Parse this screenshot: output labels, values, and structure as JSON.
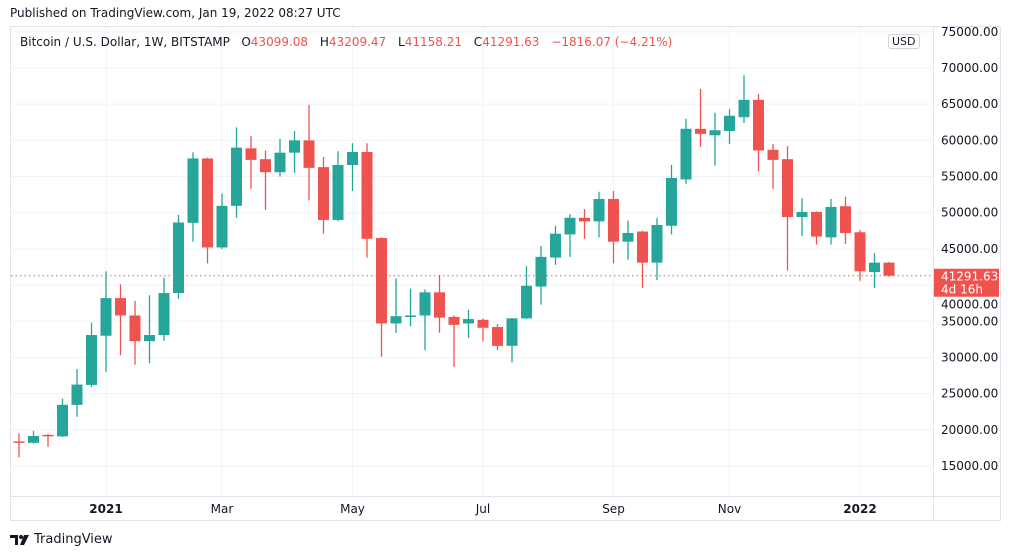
{
  "published": "Published on TradingView.com, Jan 19, 2022 08:27 UTC",
  "legend": {
    "symbol": "Bitcoin / U.S. Dollar, 1W, BITSTAMP",
    "o_label": "O",
    "o": "43099.08",
    "h_label": "H",
    "h": "43209.47",
    "l_label": "L",
    "l": "41158.21",
    "c_label": "C",
    "c": "41291.63",
    "change": "−1816.07 (−4.21%)"
  },
  "currency": "USD",
  "footer": {
    "brand": "TradingView",
    "logo_icon": "tradingview-logo-icon"
  },
  "colors": {
    "up": "#26a69a",
    "down": "#ef5350",
    "grid": "#f0f3fa"
  },
  "chart_data": {
    "type": "candlestick",
    "interval": "1W",
    "ylim": [
      12000,
      75500
    ],
    "grid": true,
    "y_ticks": [
      "75000.00",
      "70000.00",
      "65000.00",
      "60000.00",
      "55000.00",
      "50000.00",
      "45000.00",
      "40000.00",
      "35000.00",
      "30000.00",
      "25000.00",
      "20000.00",
      "15000.00"
    ],
    "x_ticks": [
      {
        "label": "2021",
        "bold": true,
        "index": 6
      },
      {
        "label": "Mar",
        "bold": false,
        "index": 14
      },
      {
        "label": "May",
        "bold": false,
        "index": 23
      },
      {
        "label": "Jul",
        "bold": false,
        "index": 32
      },
      {
        "label": "Sep",
        "bold": false,
        "index": 41
      },
      {
        "label": "Nov",
        "bold": false,
        "index": 49
      },
      {
        "label": "2022",
        "bold": true,
        "index": 58
      }
    ],
    "last_price": {
      "value": 41291.63,
      "label": "41291.63",
      "countdown": "4d 16h"
    },
    "x": [
      "2020-11-23",
      "2020-11-30",
      "2020-12-07",
      "2020-12-14",
      "2020-12-21",
      "2020-12-28",
      "2021-01-04",
      "2021-01-11",
      "2021-01-18",
      "2021-01-25",
      "2021-02-01",
      "2021-02-08",
      "2021-02-15",
      "2021-02-22",
      "2021-03-01",
      "2021-03-08",
      "2021-03-15",
      "2021-03-22",
      "2021-03-29",
      "2021-04-05",
      "2021-04-12",
      "2021-04-19",
      "2021-04-26",
      "2021-05-03",
      "2021-05-10",
      "2021-05-17",
      "2021-05-24",
      "2021-05-31",
      "2021-06-07",
      "2021-06-14",
      "2021-06-21",
      "2021-06-28",
      "2021-07-05",
      "2021-07-12",
      "2021-07-19",
      "2021-07-26",
      "2021-08-02",
      "2021-08-09",
      "2021-08-16",
      "2021-08-23",
      "2021-08-30",
      "2021-09-06",
      "2021-09-13",
      "2021-09-20",
      "2021-09-27",
      "2021-10-04",
      "2021-10-11",
      "2021-10-18",
      "2021-10-25",
      "2021-11-01",
      "2021-11-08",
      "2021-11-15",
      "2021-11-22",
      "2021-11-29",
      "2021-12-06",
      "2021-12-13",
      "2021-12-20",
      "2021-12-27",
      "2022-01-03",
      "2022-01-10",
      "2022-01-17"
    ],
    "ohlc": [
      [
        18400,
        19500,
        16200,
        18200
      ],
      [
        18200,
        19850,
        18100,
        19150
      ],
      [
        19300,
        19450,
        17650,
        19100
      ],
      [
        19100,
        24300,
        19000,
        23450
      ],
      [
        23450,
        28400,
        21800,
        26250
      ],
      [
        26200,
        34800,
        25900,
        33100
      ],
      [
        33000,
        41900,
        28000,
        38200
      ],
      [
        38200,
        40100,
        30300,
        35800
      ],
      [
        35800,
        37800,
        29000,
        32250
      ],
      [
        32250,
        38600,
        29200,
        33100
      ],
      [
        33100,
        41000,
        32300,
        38900
      ],
      [
        38900,
        49700,
        38100,
        48650
      ],
      [
        48600,
        58350,
        46000,
        57500
      ],
      [
        57500,
        57600,
        43000,
        45200
      ],
      [
        45200,
        52650,
        45000,
        50950
      ],
      [
        50950,
        61800,
        49300,
        59000
      ],
      [
        58900,
        60600,
        53300,
        57300
      ],
      [
        57400,
        58600,
        50400,
        55600
      ],
      [
        55600,
        60200,
        55000,
        58300
      ],
      [
        58300,
        61300,
        55500,
        60000
      ],
      [
        60000,
        64900,
        51700,
        56200
      ],
      [
        56300,
        57700,
        47100,
        49000
      ],
      [
        49000,
        58500,
        48800,
        56600
      ],
      [
        56600,
        59600,
        53000,
        58400
      ],
      [
        58400,
        59600,
        43800,
        46400
      ],
      [
        46500,
        46600,
        30100,
        34700
      ],
      [
        34700,
        40900,
        33400,
        35700
      ],
      [
        35600,
        39500,
        34300,
        35800
      ],
      [
        35800,
        39400,
        31000,
        39000
      ],
      [
        39000,
        41400,
        33400,
        35500
      ],
      [
        35600,
        35800,
        28700,
        34500
      ],
      [
        34700,
        36600,
        32700,
        35300
      ],
      [
        35200,
        35400,
        32200,
        34100
      ],
      [
        34200,
        34600,
        31000,
        31600
      ],
      [
        31600,
        35450,
        29300,
        35400
      ],
      [
        35400,
        42600,
        35300,
        39900
      ],
      [
        39800,
        45400,
        37300,
        43900
      ],
      [
        43800,
        48200,
        42800,
        47100
      ],
      [
        47000,
        49800,
        43900,
        49300
      ],
      [
        49300,
        50500,
        46400,
        48800
      ],
      [
        48800,
        52900,
        46600,
        51900
      ],
      [
        51900,
        53000,
        43000,
        46000
      ],
      [
        46000,
        48900,
        43500,
        47200
      ],
      [
        47400,
        47500,
        39600,
        43100
      ],
      [
        43100,
        49300,
        40700,
        48300
      ],
      [
        48200,
        56600,
        47000,
        54800
      ],
      [
        54600,
        63000,
        54000,
        61600
      ],
      [
        61600,
        67100,
        59100,
        60900
      ],
      [
        60700,
        63800,
        56500,
        61400
      ],
      [
        61300,
        64300,
        59500,
        63400
      ],
      [
        63200,
        69000,
        62400,
        65600
      ],
      [
        65600,
        66400,
        55700,
        58600
      ],
      [
        58700,
        59500,
        53300,
        57300
      ],
      [
        57400,
        59200,
        42000,
        49400
      ],
      [
        49400,
        52000,
        46800,
        50100
      ],
      [
        50100,
        50200,
        45600,
        46700
      ],
      [
        46600,
        51900,
        45600,
        50800
      ],
      [
        50900,
        52200,
        45700,
        47200
      ],
      [
        47300,
        47600,
        40600,
        41900
      ],
      [
        41800,
        44400,
        39600,
        43100
      ],
      [
        43099.08,
        43209.47,
        41158.21,
        41291.63
      ]
    ]
  }
}
